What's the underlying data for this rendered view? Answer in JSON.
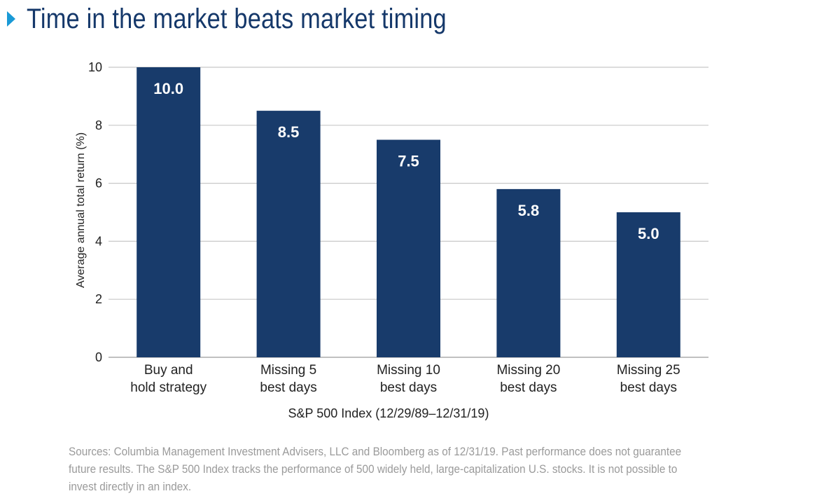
{
  "title": "Time in the market beats market timing",
  "title_icon": "chevron-right-icon",
  "colors": {
    "bar": "#183b6b",
    "title": "#15386a",
    "accent": "#1a9ad6",
    "grid": "#c8c8c8",
    "text": "#222222",
    "footnote": "#9a9a9a"
  },
  "chart_data": {
    "type": "bar",
    "categories": [
      [
        "Buy and",
        "hold strategy"
      ],
      [
        "Missing 5",
        "best days"
      ],
      [
        "Missing 10",
        "best days"
      ],
      [
        "Missing 20",
        "best days"
      ],
      [
        "Missing 25",
        "best days"
      ]
    ],
    "values": [
      10.0,
      8.5,
      7.5,
      5.8,
      5.0
    ],
    "value_labels": [
      "10.0",
      "8.5",
      "7.5",
      "5.8",
      "5.0"
    ],
    "ylabel": "Average annual total return (%)",
    "xlabel": "S&P 500 Index (12/29/89–12/31/19)",
    "ylim": [
      0,
      10
    ],
    "yticks": [
      0,
      2,
      4,
      6,
      8,
      10
    ],
    "grid": true,
    "legend": "none"
  },
  "footnote": "Sources: Columbia Management Investment Advisers, LLC and Bloomberg as of 12/31/19. Past performance does not guarantee future results. The S&P 500 Index tracks the performance of 500 widely held, large-capitalization U.S. stocks. It is not possible to invest directly in an index."
}
